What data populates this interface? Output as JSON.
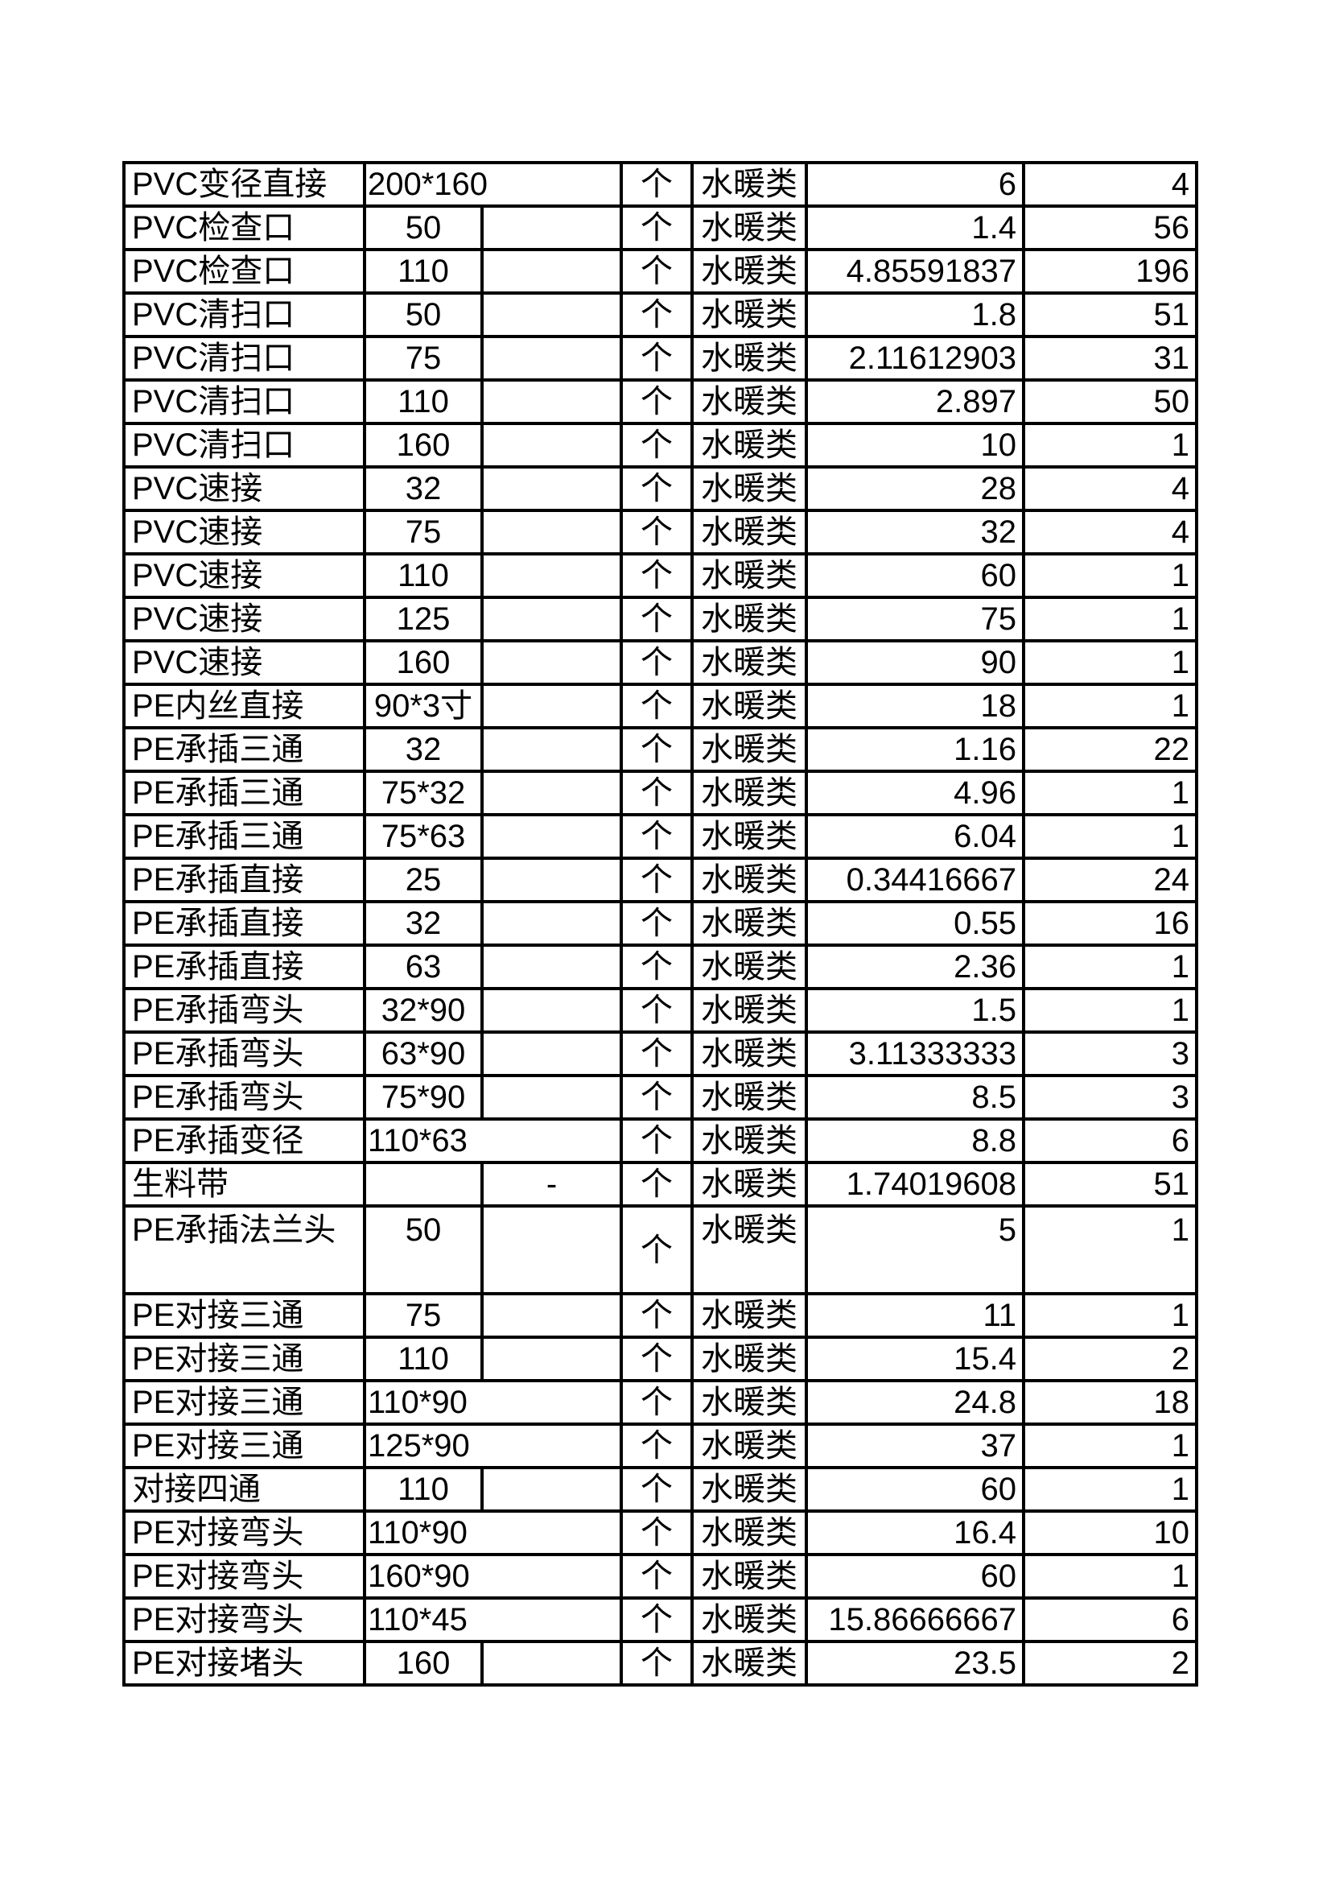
{
  "page": {
    "background_color": "#ffffff",
    "border_color": "#000000",
    "text_color": "#000000"
  },
  "table": {
    "unit_label": "个",
    "category_label": "水暖类",
    "rows": [
      {
        "name": "PVC变径直接",
        "size": "200*160",
        "merged": true,
        "price": "6",
        "qty": "4"
      },
      {
        "name": "PVC检查口",
        "size": "50",
        "price": "1.4",
        "qty": "56"
      },
      {
        "name": "PVC检查口",
        "size": "110",
        "price": "4.85591837",
        "qty": "196"
      },
      {
        "name": "PVC清扫口",
        "size": "50",
        "price": "1.8",
        "qty": "51"
      },
      {
        "name": "PVC清扫口",
        "size": "75",
        "price": "2.11612903",
        "qty": "31"
      },
      {
        "name": "PVC清扫口",
        "size": "110",
        "price": "2.897",
        "qty": "50"
      },
      {
        "name": "PVC清扫口",
        "size": "160",
        "price": "10",
        "qty": "1"
      },
      {
        "name": "PVC速接",
        "size": "32",
        "price": "28",
        "qty": "4"
      },
      {
        "name": "PVC速接",
        "size": "75",
        "price": "32",
        "qty": "4"
      },
      {
        "name": "PVC速接",
        "size": "110",
        "price": "60",
        "qty": "1"
      },
      {
        "name": "PVC速接",
        "size": "125",
        "price": "75",
        "qty": "1"
      },
      {
        "name": "PVC速接",
        "size": "160",
        "price": "90",
        "qty": "1"
      },
      {
        "name": "PE内丝直接",
        "size": "90*3寸",
        "price": "18",
        "qty": "1"
      },
      {
        "name": "PE承插三通",
        "size": "32",
        "price": "1.16",
        "qty": "22"
      },
      {
        "name": "PE承插三通",
        "size": "75*32",
        "price": "4.96",
        "qty": "1"
      },
      {
        "name": "PE承插三通",
        "size": "75*63",
        "price": "6.04",
        "qty": "1"
      },
      {
        "name": "PE承插直接",
        "size": "25",
        "price": "0.34416667",
        "qty": "24"
      },
      {
        "name": "PE承插直接",
        "size": "32",
        "price": "0.55",
        "qty": "16"
      },
      {
        "name": "PE承插直接",
        "size": "63",
        "price": "2.36",
        "qty": "1"
      },
      {
        "name": "PE承插弯头",
        "size": "32*90",
        "price": "1.5",
        "qty": "1"
      },
      {
        "name": "PE承插弯头",
        "size": "63*90",
        "price": "3.11333333",
        "qty": "3"
      },
      {
        "name": "PE承插弯头",
        "size": "75*90",
        "price": "8.5",
        "qty": "3"
      },
      {
        "name": "PE承插变径",
        "size": "110*63",
        "merged": true,
        "price": "8.8",
        "qty": "6"
      },
      {
        "name": "生料带",
        "size": "",
        "dash": "-",
        "price": "1.74019608",
        "qty": "51"
      },
      {
        "name": "PE承插法兰头",
        "size": "50",
        "tall": true,
        "price": "5",
        "qty": "1"
      },
      {
        "name": "PE对接三通",
        "size": "75",
        "price": "11",
        "qty": "1"
      },
      {
        "name": "PE对接三通",
        "size": "110",
        "price": "15.4",
        "qty": "2"
      },
      {
        "name": "PE对接三通",
        "size": "110*90",
        "merged": true,
        "price": "24.8",
        "qty": "18"
      },
      {
        "name": "PE对接三通",
        "size": "125*90",
        "merged": true,
        "price": "37",
        "qty": "1"
      },
      {
        "name": "对接四通",
        "size": "110",
        "price": "60",
        "qty": "1"
      },
      {
        "name": "PE对接弯头",
        "size": "110*90",
        "merged": true,
        "price": "16.4",
        "qty": "10"
      },
      {
        "name": "PE对接弯头",
        "size": "160*90",
        "merged": true,
        "price": "60",
        "qty": "1"
      },
      {
        "name": "PE对接弯头",
        "size": "110*45",
        "merged": true,
        "price": "15.86666667",
        "qty": "6"
      },
      {
        "name": "PE对接堵头",
        "size": "160",
        "price": "23.5",
        "qty": "2"
      }
    ]
  }
}
